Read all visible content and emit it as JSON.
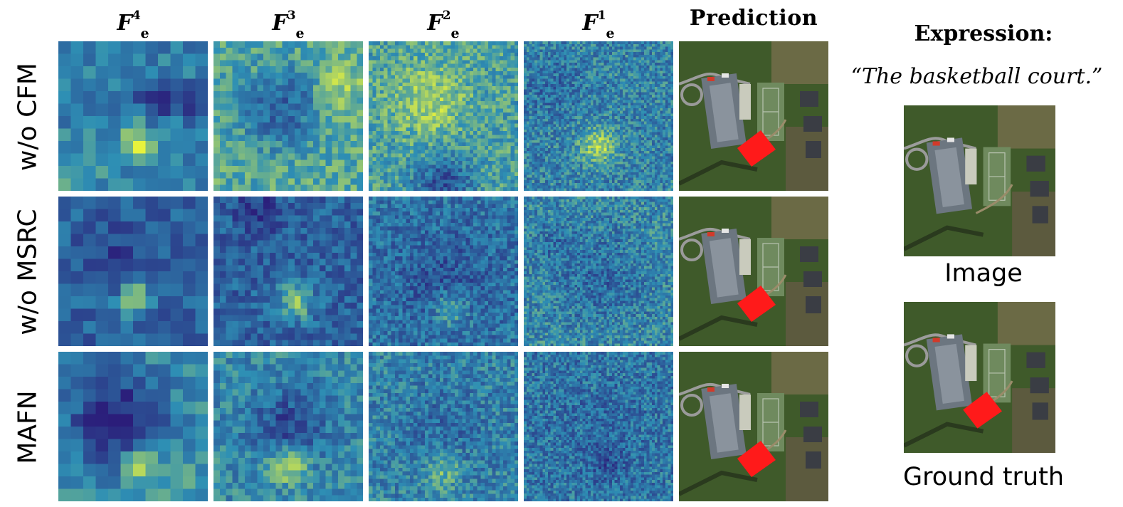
{
  "columns": [
    {
      "sym": "F",
      "sup": "4",
      "sub": "e"
    },
    {
      "sym": "F",
      "sup": "3",
      "sub": "e"
    },
    {
      "sym": "F",
      "sup": "2",
      "sub": "e"
    },
    {
      "sym": "F",
      "sup": "1",
      "sub": "e"
    },
    {
      "label": "Prediction"
    }
  ],
  "rows": [
    "w/o CFM",
    "w/o MSRC",
    "MAFN"
  ],
  "side_panel": {
    "expression_title": "Expression:",
    "expression_text": "“The basketball court.”",
    "image_caption": "Image",
    "gt_caption": "Ground truth"
  },
  "colors": {
    "heat_low": "#2b1d7a",
    "heat_mid": "#2e8fb4",
    "heat_high": "#e8f23c",
    "mask": "#ff1a1a",
    "grass": "#3f5a2a"
  }
}
